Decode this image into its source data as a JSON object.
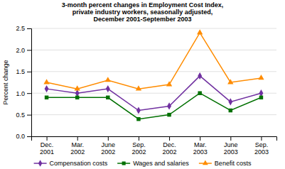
{
  "chart_data": {
    "type": "line",
    "title": "3-month percent changes in Employment Cost Index,\nprivate industry workers, seasonally adjusted,\nDecember 2001-September 2003",
    "ylabel": "Percent change",
    "categories": [
      "Dec.\n2001",
      "Mar.\n2002",
      "June\n2002",
      "Sep.\n2002",
      "Dec.\n2002",
      "Mar.\n2003",
      "June\n2003",
      "Sep.\n2003"
    ],
    "series": [
      {
        "name": "Compensation costs",
        "color": "#7030A0",
        "marker": "diamond",
        "values": [
          1.1,
          1.0,
          1.1,
          0.6,
          0.7,
          1.4,
          0.8,
          1.0
        ]
      },
      {
        "name": "Wages and salaries",
        "color": "#007000",
        "marker": "square",
        "values": [
          0.9,
          0.9,
          0.9,
          0.4,
          0.5,
          1.0,
          0.6,
          0.9
        ]
      },
      {
        "name": "Benefit costs",
        "color": "#FF8C00",
        "marker": "triangle",
        "values": [
          1.25,
          1.1,
          1.3,
          1.1,
          1.2,
          2.4,
          1.25,
          1.35
        ]
      }
    ],
    "ylim": [
      0.0,
      2.5
    ],
    "yticks": [
      {
        "value": 0.0,
        "label": "0.0"
      },
      0.5,
      {
        "value": 1.0,
        "label": "1.0"
      },
      1.5,
      {
        "value": 2.0,
        "label": "2.0"
      },
      2.5
    ],
    "grid": true,
    "legend": "bottom"
  }
}
